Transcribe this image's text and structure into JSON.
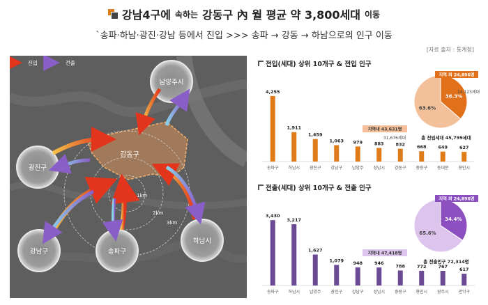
{
  "header": {
    "title_main": "강남4구에",
    "title_small": "속하는",
    "title_rest": "강동구 內 월 평균 약 3,800세대",
    "title_tail": "이동",
    "subtitle": "`송파·하남·광진·강남 등에서 진입 >>> 송파 → 강동 → 하남으로의 인구 이동",
    "source": "[자료 출처 : 통계청]"
  },
  "map": {
    "legend_in": "진입",
    "legend_out": "전출",
    "center_label": "강동구",
    "ring_labels": [
      "1km",
      "2km",
      "3km"
    ],
    "station_label": "S",
    "bubbles": [
      "남양주시",
      "광진구",
      "하남시",
      "강남구",
      "송파구"
    ],
    "colors": {
      "in": "#e8741e",
      "out": "#8a6fc8",
      "district": "#d9925a"
    }
  },
  "chart_data": [
    {
      "type": "bar",
      "title": "전입(세대) 상위 10개구 & 전입 인구",
      "categories": [
        "송파구",
        "하남시",
        "광진구",
        "강남구",
        "남양주",
        "성남시",
        "강동구",
        "중랑구",
        "동대문",
        "용인시"
      ],
      "values": [
        4255,
        1911,
        1459,
        1063,
        979,
        883,
        832,
        668,
        649,
        627
      ],
      "value_labels": [
        "4,255",
        "1,911",
        "1,459",
        "1,063",
        "979",
        "883",
        "832",
        "668",
        "649",
        "627"
      ],
      "color": "#e07b1a",
      "ylim": [
        0,
        4700
      ],
      "pie": {
        "type": "pie",
        "slices": [
          {
            "label": "지역외",
            "value": 36.3,
            "color": "#e0701a"
          },
          {
            "label": "지역내",
            "value": 63.6,
            "color": "#f3c09a"
          }
        ],
        "slice_labels": [
          "36.3%",
          "63.6%"
        ],
        "callout_outer": "지역 외 24,896명",
        "callout_outer_sub": "14,123세대",
        "callout_inner": "지역내 43,631명",
        "callout_inner_sub": "31,676세대",
        "total": "총 진입세대 45,799세대"
      }
    },
    {
      "type": "bar",
      "title": "전출(세대) 상위 10개구 & 전출 인구",
      "categories": [
        "송파구",
        "하남시",
        "남양주",
        "광진구",
        "강남구",
        "성남시",
        "중랑구",
        "용인시",
        "광주시",
        "관악구"
      ],
      "values": [
        3430,
        3217,
        1627,
        1079,
        948,
        946,
        788,
        772,
        767,
        617
      ],
      "value_labels": [
        "3,430",
        "3,217",
        "1,627",
        "1,079",
        "948",
        "946",
        "788",
        "772",
        "767",
        "617"
      ],
      "color": "#6a4a93",
      "ylim": [
        0,
        3800
      ],
      "pie": {
        "type": "pie",
        "slices": [
          {
            "label": "지역외",
            "value": 34.4,
            "color": "#8b4fc0"
          },
          {
            "label": "지역내",
            "value": 65.6,
            "color": "#dcc4ec"
          }
        ],
        "slice_labels": [
          "34.4%",
          "65.6%"
        ],
        "callout_outer": "지역 외 24,896명",
        "callout_inner": "지역내 47,418명",
        "total": "총 전출인구 72,314명"
      }
    }
  ]
}
